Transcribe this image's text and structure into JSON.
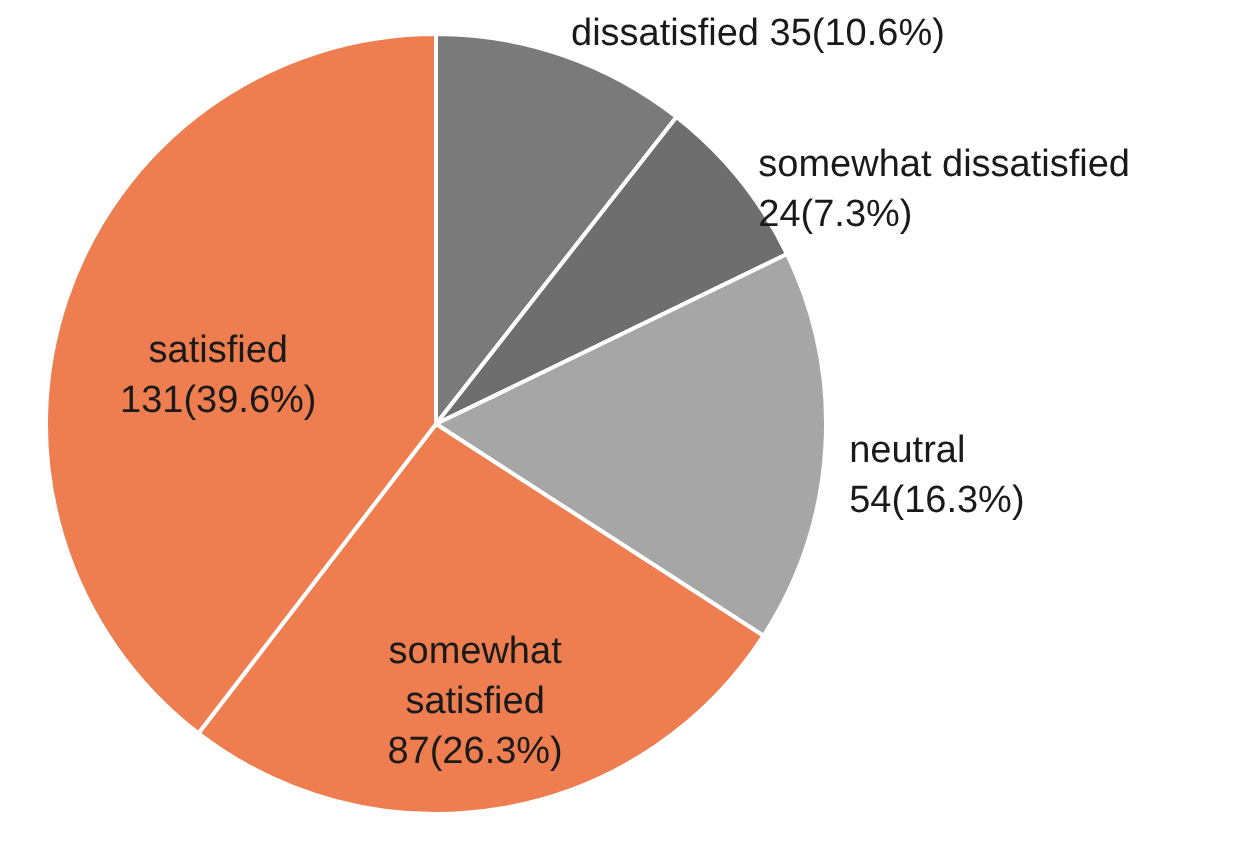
{
  "chart_data": {
    "type": "pie",
    "categories": [
      "dissatisfied",
      "somewhat dissatisfied",
      "neutral",
      "somewhat satisfied",
      "satisfied"
    ],
    "values": [
      35,
      24,
      54,
      87,
      131
    ],
    "colors": [
      "#7a7a7a",
      "#6e6e6e",
      "#a6a6a6",
      "#ee7d50",
      "#ee7d50"
    ],
    "value_labels": [
      "35(10.6%)",
      "24(7.3%)",
      "54(16.3%)",
      "87(26.3%)",
      "131(39.6%)"
    ]
  }
}
